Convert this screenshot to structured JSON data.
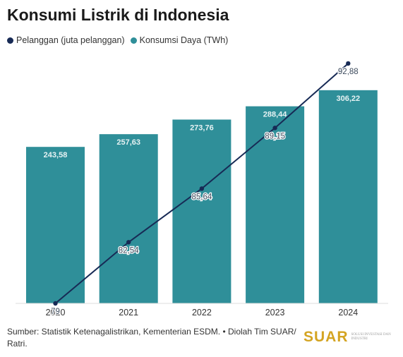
{
  "title": "Konsumi Listrik di Indonesia",
  "colors": {
    "line": "#172a55",
    "bar": "#2f8f99",
    "bar_label": "#e6f2f3",
    "line_label": "#3c4a5c"
  },
  "chart_data": {
    "type": "bar",
    "categories": [
      "2020",
      "2021",
      "2022",
      "2023",
      "2024"
    ],
    "series": [
      {
        "name": "Konsumsi Daya (TWh)",
        "type": "bar",
        "values": [
          243.58,
          257.63,
          273.76,
          288.44,
          306.22
        ],
        "labels": [
          "243,58",
          "257,63",
          "273,76",
          "288,44",
          "306,22"
        ]
      },
      {
        "name": "Pelanggan (juta pelanggan)",
        "type": "line",
        "values": [
          79,
          82.54,
          85.64,
          89.15,
          92.88
        ],
        "labels": [
          "79",
          "82,54",
          "85,64",
          "89,15",
          "92,88"
        ]
      }
    ],
    "title": "Konsumi Listrik di Indonesia",
    "xlabel": "",
    "ylabel": "",
    "grid": false,
    "legend_position": "top-left"
  },
  "footer": {
    "source": "Sumber: Statistik Ketenagalistrikan, Kementerian ESDM. • Diolah Tim SUAR/ Ratri.",
    "logo_word": "SUAR",
    "logo_tagline": "SOLUSI INVESTASI DAN INDUSTRI"
  }
}
